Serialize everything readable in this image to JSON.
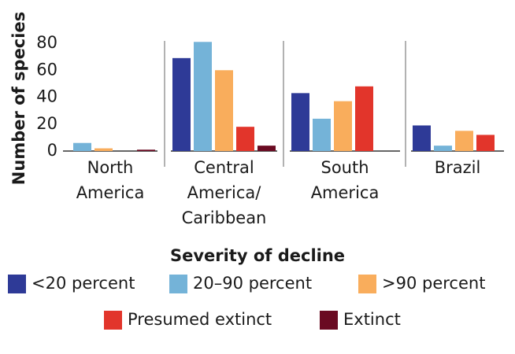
{
  "chart_data": {
    "type": "bar",
    "y_label": "Number of species",
    "legend_title": "Severity of decline",
    "categories": [
      [
        "North",
        "America"
      ],
      [
        "Central",
        "America/",
        "Caribbean"
      ],
      [
        "South",
        "America"
      ],
      [
        "Brazil"
      ]
    ],
    "series": [
      {
        "name": "<20 percent",
        "color": "#2e3a97",
        "values": [
          0,
          69,
          43,
          19
        ]
      },
      {
        "name": "20–90 percent",
        "color": "#74b3d8",
        "values": [
          6,
          81,
          24,
          4
        ]
      },
      {
        "name": ">90 percent",
        "color": "#f9ad5c",
        "values": [
          2,
          60,
          37,
          15
        ]
      },
      {
        "name": "Presumed extinct",
        "color": "#e2352b",
        "values": [
          0,
          18,
          48,
          12
        ]
      },
      {
        "name": "Extinct",
        "color": "#6a0a22",
        "values": [
          1,
          4,
          0,
          0
        ]
      }
    ],
    "ylim": [
      0,
      80
    ],
    "yticks": [
      0,
      20,
      40,
      60,
      80
    ]
  }
}
